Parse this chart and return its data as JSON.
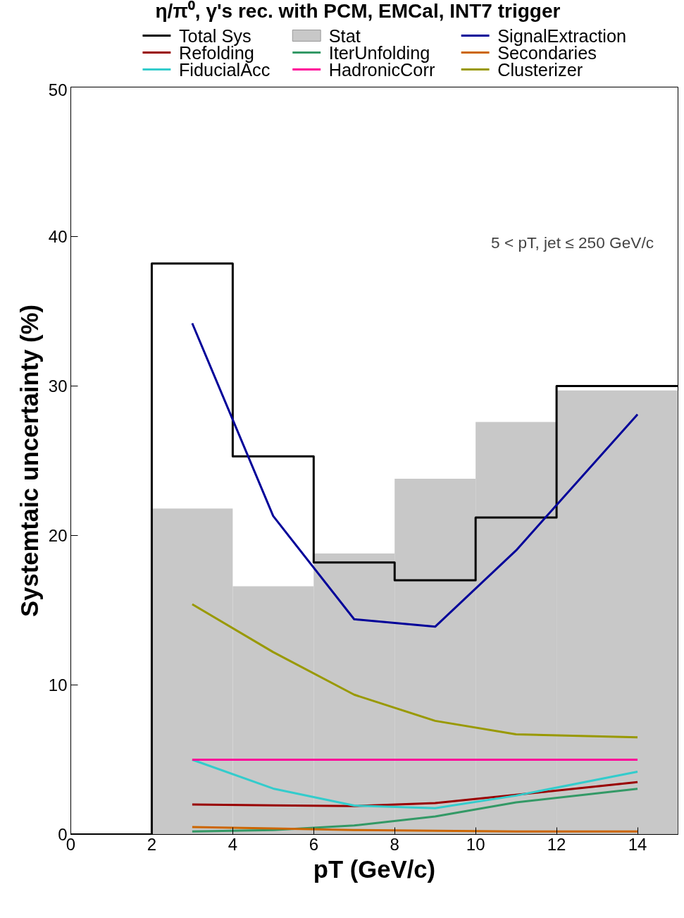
{
  "chart_data": {
    "type": "line",
    "title": "η/π⁰, γ's rec. with PCM, EMCal,   INT7 trigger",
    "xlabel": "pT (GeV/c)",
    "ylabel": "Systemtaic uncertainty (%)",
    "xlim": [
      0,
      15
    ],
    "ylim": [
      0,
      50
    ],
    "xticks": [
      0,
      2,
      4,
      6,
      8,
      10,
      12,
      14
    ],
    "yticks": [
      0,
      10,
      20,
      30,
      40,
      50
    ],
    "grid": false,
    "legend": "top",
    "annotations": [
      "5 < pT, jet ≤ 250 GeV/c"
    ],
    "series": [
      {
        "name": "Total Sys",
        "type": "step",
        "color": "#000000",
        "x": [
          0,
          2,
          4,
          6,
          8,
          10,
          12,
          15
        ],
        "values": [
          0,
          38.2,
          25.3,
          18.2,
          17.0,
          21.2,
          30.0,
          30.0
        ]
      },
      {
        "name": "Stat",
        "type": "histogram",
        "color": "#c8c8c8",
        "bins": [
          2,
          4,
          6,
          8,
          10,
          12,
          15
        ],
        "values": [
          21.8,
          16.6,
          18.8,
          23.8,
          27.6,
          29.7
        ]
      },
      {
        "name": "SignalExtraction",
        "color": "#000099",
        "x": [
          3,
          5,
          7,
          9,
          11,
          14
        ],
        "values": [
          34.2,
          21.3,
          14.4,
          13.9,
          19.0,
          28.1
        ]
      },
      {
        "name": "Refolding",
        "color": "#990000",
        "x": [
          3,
          5,
          7,
          9,
          11,
          14
        ],
        "values": [
          2.0,
          1.95,
          1.9,
          2.1,
          2.65,
          3.5
        ]
      },
      {
        "name": "IterUnfolding",
        "color": "#339966",
        "x": [
          3,
          5,
          7,
          9,
          11,
          14
        ],
        "values": [
          0.2,
          0.3,
          0.6,
          1.2,
          2.15,
          3.05
        ]
      },
      {
        "name": "Secondaries",
        "color": "#cc6600",
        "x": [
          3,
          5,
          7,
          9,
          11,
          14
        ],
        "values": [
          0.5,
          0.4,
          0.3,
          0.25,
          0.2,
          0.2
        ]
      },
      {
        "name": "FiducialAcc",
        "color": "#33cccc",
        "x": [
          3,
          5,
          7,
          9,
          11,
          14
        ],
        "values": [
          5.0,
          3.07,
          1.93,
          1.76,
          2.6,
          4.2
        ]
      },
      {
        "name": "HadronicCorr",
        "color": "#ff0099",
        "x": [
          3,
          5,
          7,
          9,
          11,
          14
        ],
        "values": [
          5.0,
          5.0,
          5.0,
          5.0,
          5.0,
          5.0
        ]
      },
      {
        "name": "Clusterizer",
        "color": "#999900",
        "x": [
          3,
          5,
          7,
          9,
          11,
          14
        ],
        "values": [
          15.4,
          12.2,
          9.35,
          7.6,
          6.7,
          6.5
        ]
      }
    ]
  }
}
